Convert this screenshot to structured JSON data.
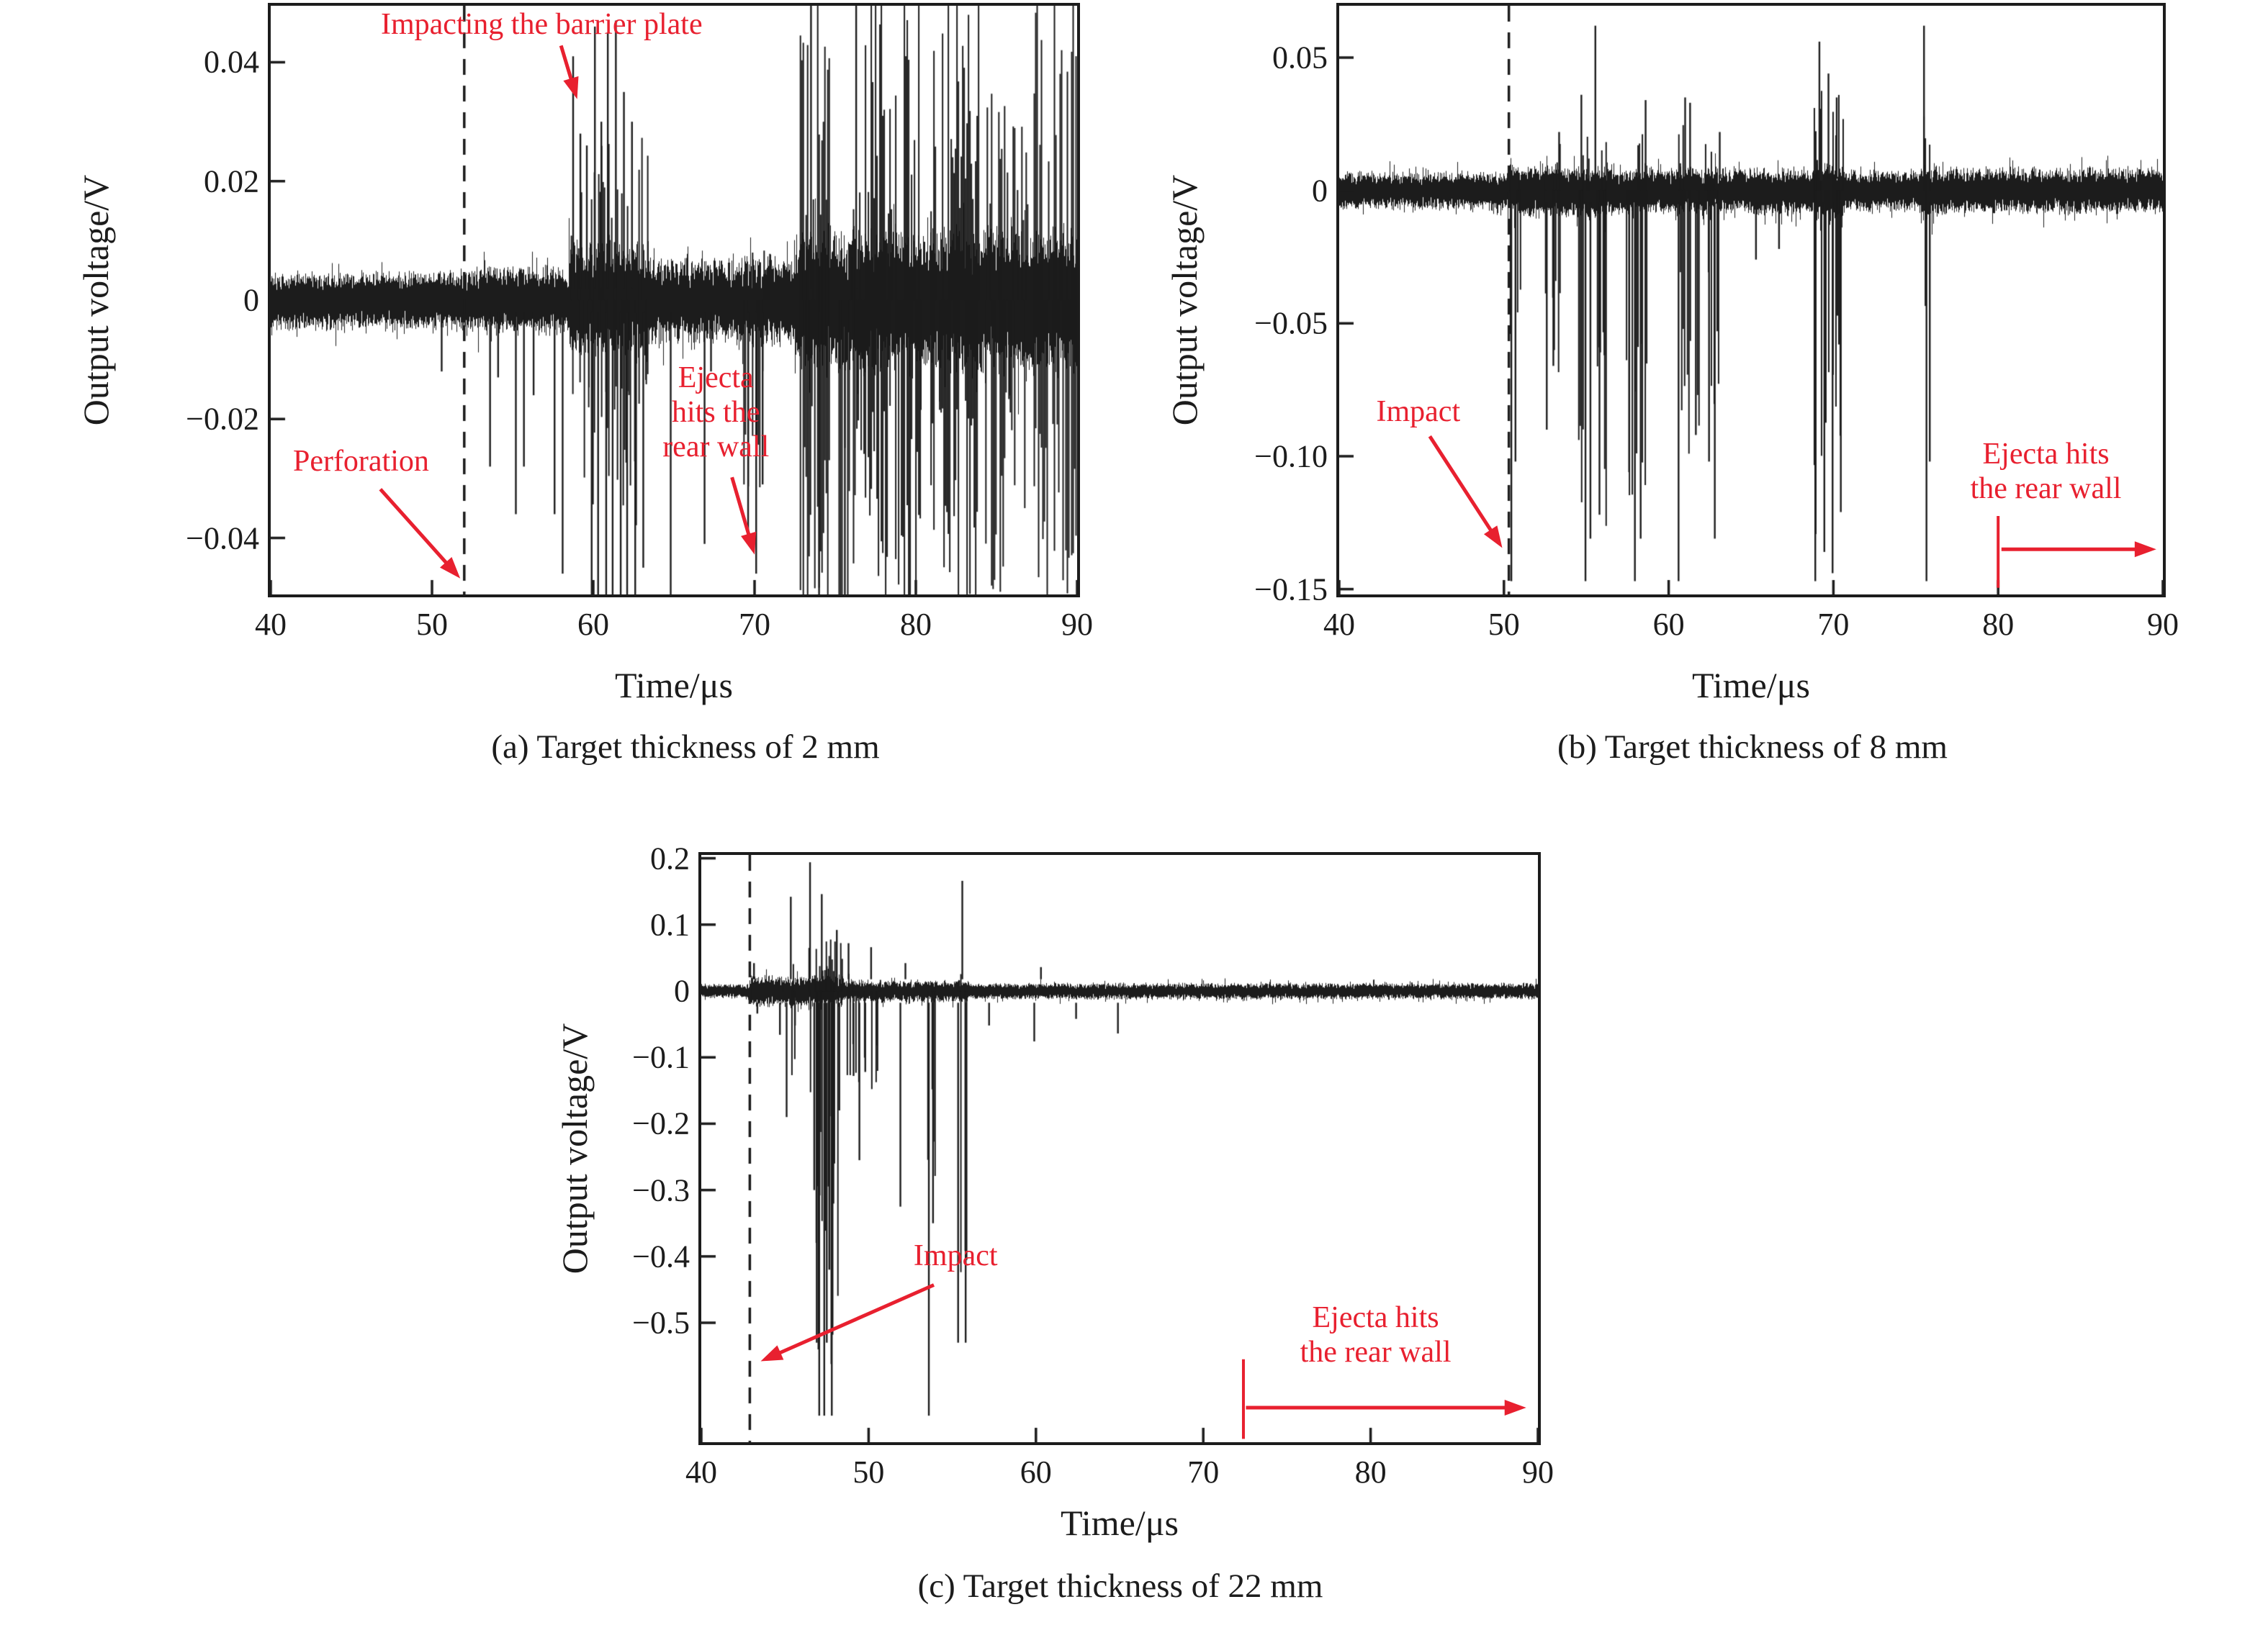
{
  "page_background": "#ffffff",
  "chart_data": [
    {
      "type": "line",
      "panel": "a",
      "caption": "(a) Target thickness of 2 mm",
      "xlabel": "Time/μs",
      "ylabel": "Output voltage/V",
      "xlim": [
        40,
        90
      ],
      "ylim": [
        -0.0495,
        0.0495
      ],
      "xticks": [
        40,
        50,
        60,
        70,
        80,
        90
      ],
      "yticks": [
        [
          0.04,
          "0.04"
        ],
        [
          0.02,
          "0.02"
        ],
        [
          0,
          "0"
        ],
        [
          -0.02,
          "−0.02"
        ],
        [
          -0.04,
          "−0.04"
        ]
      ],
      "dashed_line_x": 52,
      "trace_color": "#1c1c1c",
      "annotation_color": "#e8202f",
      "noise_base": 0.0042,
      "noise_profile": [
        [
          52,
          58,
          0.005
        ],
        [
          58.5,
          63.5,
          0.0085
        ],
        [
          63.5,
          69,
          0.006
        ],
        [
          69,
          72.5,
          0.0065
        ],
        [
          72.5,
          90,
          0.0105
        ]
      ],
      "spikes": [
        [
          50.6,
          -0.012
        ],
        [
          53.6,
          -0.028
        ],
        [
          54.1,
          -0.013
        ],
        [
          55.2,
          -0.036
        ],
        [
          55.7,
          -0.028
        ],
        [
          56.3,
          -0.016
        ],
        [
          57.6,
          -0.036
        ],
        [
          58.1,
          -0.046
        ],
        [
          58.75,
          0.041
        ],
        [
          59.2,
          0.028
        ],
        [
          59.6,
          0.026
        ],
        [
          60.1,
          0.046
        ],
        [
          60.5,
          0.03
        ],
        [
          60.9,
          0.045
        ],
        [
          61.4,
          0.047
        ],
        [
          61.9,
          0.035
        ],
        [
          62.4,
          0.03
        ],
        [
          59.9,
          -0.052
        ],
        [
          60.3,
          -0.052
        ],
        [
          60.8,
          -0.052
        ],
        [
          61.2,
          -0.052
        ],
        [
          61.7,
          -0.052
        ],
        [
          62.1,
          -0.052
        ],
        [
          62.6,
          -0.052
        ],
        [
          63.1,
          -0.045
        ],
        [
          64.8,
          -0.05
        ],
        [
          66.9,
          -0.041
        ],
        [
          67.3,
          -0.012
        ],
        [
          69.6,
          -0.04
        ],
        [
          70.1,
          -0.046
        ],
        [
          70.5,
          -0.031
        ],
        [
          73.5,
          0.052
        ],
        [
          74.0,
          -0.052
        ],
        [
          75.6,
          -0.052
        ],
        [
          76.3,
          0.052
        ]
      ],
      "bursts": [
        [
          58.6,
          63.4,
          0.028,
          -0.04,
          0.5
        ],
        [
          69.3,
          71.0,
          0.012,
          -0.035,
          0.35
        ],
        [
          72.8,
          74.6,
          0.056,
          -0.056,
          0.75
        ],
        [
          75.2,
          76.2,
          0.02,
          -0.055,
          0.5
        ],
        [
          76.3,
          80.4,
          0.056,
          -0.056,
          0.75
        ],
        [
          80.9,
          83.9,
          0.056,
          -0.056,
          0.7
        ],
        [
          84.3,
          86.9,
          0.038,
          -0.05,
          0.55
        ],
        [
          87.3,
          90,
          0.056,
          -0.056,
          0.7
        ]
      ],
      "annotations": [
        {
          "name": "impacting-barrier-plate-label",
          "lines": [
            "Impacting the barrier plate"
          ],
          "x": 56.8,
          "y": 0.0462,
          "arrow": [
            58.0,
            0.0428,
            59.0,
            0.0338
          ]
        },
        {
          "name": "perforation-label",
          "lines": [
            "Perforation"
          ],
          "x": 45.6,
          "y": -0.0272,
          "arrow": [
            46.8,
            -0.0318,
            51.75,
            -0.0468
          ]
        },
        {
          "name": "ejecta-hits-rear-wall-label",
          "lines": [
            "Ejecta",
            "hits the",
            "rear wall"
          ],
          "x": 67.6,
          "y": -0.019,
          "arrow": [
            68.6,
            -0.0298,
            70.0,
            -0.0428
          ]
        }
      ]
    },
    {
      "type": "line",
      "panel": "b",
      "caption": "(b) Target thickness of 8 mm",
      "xlabel": "Time/μs",
      "ylabel": "Output voltage/V",
      "xlim": [
        40,
        90
      ],
      "ylim": [
        -0.152,
        0.0695
      ],
      "xticks": [
        40,
        50,
        60,
        70,
        80,
        90
      ],
      "yticks": [
        [
          0.05,
          "0.05"
        ],
        [
          0,
          "0"
        ],
        [
          -0.05,
          "−0.05"
        ],
        [
          -0.1,
          "−0.10"
        ],
        [
          -0.15,
          "−0.15"
        ]
      ],
      "dashed_line_x": 50.3,
      "trace_color": "#1c1c1c",
      "annotation_color": "#e8202f",
      "noise_base": 0.006,
      "noise_profile": [
        [
          50.3,
          56.5,
          0.0085
        ],
        [
          56.5,
          68.8,
          0.0075
        ],
        [
          68.8,
          70.6,
          0.0095
        ],
        [
          70.6,
          75.3,
          0.0065
        ],
        [
          75.3,
          76.3,
          0.009
        ],
        [
          76.3,
          90,
          0.0075
        ]
      ],
      "spikes": [
        [
          50.45,
          -0.147
        ],
        [
          50.7,
          -0.102
        ],
        [
          52.6,
          -0.09
        ],
        [
          53.0,
          -0.066
        ],
        [
          53.35,
          0.022
        ],
        [
          54.7,
          0.036
        ],
        [
          54.95,
          -0.147
        ],
        [
          55.25,
          -0.131
        ],
        [
          55.55,
          0.062
        ],
        [
          55.8,
          -0.122
        ],
        [
          56.1,
          -0.062
        ],
        [
          57.6,
          -0.106
        ],
        [
          57.95,
          -0.147
        ],
        [
          58.3,
          -0.131
        ],
        [
          58.6,
          0.034
        ],
        [
          60.6,
          -0.147
        ],
        [
          61.0,
          0.035
        ],
        [
          61.3,
          0.033
        ],
        [
          61.65,
          -0.092
        ],
        [
          62.45,
          -0.102
        ],
        [
          62.8,
          -0.131
        ],
        [
          63.1,
          0.022
        ],
        [
          65.3,
          -0.026
        ],
        [
          66.7,
          -0.022
        ],
        [
          68.9,
          -0.147
        ],
        [
          69.15,
          0.056
        ],
        [
          69.45,
          -0.136
        ],
        [
          69.7,
          0.044
        ],
        [
          69.95,
          -0.144
        ],
        [
          70.2,
          0.035
        ],
        [
          70.45,
          -0.121
        ],
        [
          75.5,
          0.062
        ],
        [
          75.65,
          -0.147
        ],
        [
          75.85,
          -0.102
        ]
      ],
      "bursts": [
        [
          50.35,
          51.0,
          0.012,
          -0.118,
          0.45
        ],
        [
          52.4,
          53.4,
          0.018,
          -0.082,
          0.4
        ],
        [
          54.5,
          56.2,
          0.028,
          -0.128,
          0.5
        ],
        [
          57.4,
          58.7,
          0.024,
          -0.118,
          0.45
        ],
        [
          60.4,
          61.8,
          0.03,
          -0.1,
          0.4
        ],
        [
          62.2,
          63.3,
          0.02,
          -0.1,
          0.4
        ],
        [
          68.8,
          70.6,
          0.04,
          -0.132,
          0.5
        ],
        [
          75.45,
          75.95,
          0.05,
          -0.138,
          0.55
        ]
      ],
      "annotations": [
        {
          "name": "impact-label",
          "lines": [
            "Impact"
          ],
          "x": 44.8,
          "y": -0.0835,
          "arrow": [
            45.5,
            -0.0925,
            49.9,
            -0.1345
          ]
        },
        {
          "name": "ejecta-hits-rear-wall-label",
          "lines": [
            "Ejecta hits",
            "the rear wall"
          ],
          "x": 82.9,
          "y": -0.106,
          "vline": [
            80,
            -0.1225,
            -0.1495
          ],
          "harrow": [
            -0.135,
            80.2,
            89.6
          ]
        }
      ]
    },
    {
      "type": "line",
      "panel": "c",
      "caption": "(c) Target thickness of 22 mm",
      "xlabel": "Time/μs",
      "ylabel": "Output voltage/V",
      "xlim": [
        40,
        90
      ],
      "ylim": [
        -0.68,
        0.205
      ],
      "xticks": [
        40,
        50,
        60,
        70,
        80,
        90
      ],
      "yticks": [
        [
          0.2,
          "0.2"
        ],
        [
          0.1,
          "0.1"
        ],
        [
          0,
          "0"
        ],
        [
          -0.1,
          "−0.1"
        ],
        [
          -0.2,
          "−0.2"
        ],
        [
          -0.3,
          "−0.3"
        ],
        [
          -0.4,
          "−0.4"
        ],
        [
          -0.5,
          "−0.5"
        ]
      ],
      "dashed_line_x": 42.9,
      "trace_color": "#1c1c1c",
      "annotation_color": "#e8202f",
      "noise_base": 0.009,
      "noise_profile": [
        [
          42.9,
          48.5,
          0.02
        ],
        [
          48.5,
          56,
          0.014
        ],
        [
          56,
          90,
          0.0105
        ]
      ],
      "spikes": [
        [
          43.15,
          0.042
        ],
        [
          43.35,
          -0.034
        ],
        [
          44.7,
          -0.066
        ],
        [
          45.1,
          -0.19
        ],
        [
          45.35,
          0.142
        ],
        [
          45.6,
          -0.052
        ],
        [
          46.5,
          0.194
        ],
        [
          46.75,
          -0.3
        ],
        [
          46.9,
          -0.53
        ],
        [
          47.05,
          -0.64
        ],
        [
          47.2,
          0.146
        ],
        [
          47.35,
          -0.64
        ],
        [
          47.5,
          -0.53
        ],
        [
          47.65,
          -0.42
        ],
        [
          47.8,
          -0.64
        ],
        [
          47.95,
          -0.26
        ],
        [
          48.1,
          0.092
        ],
        [
          48.25,
          -0.18
        ],
        [
          48.8,
          0.072
        ],
        [
          49.1,
          -0.128
        ],
        [
          49.45,
          -0.255
        ],
        [
          49.8,
          -0.122
        ],
        [
          50.15,
          0.066
        ],
        [
          50.5,
          -0.082
        ],
        [
          51.9,
          -0.325
        ],
        [
          52.2,
          0.042
        ],
        [
          53.6,
          -0.64
        ],
        [
          53.85,
          -0.35
        ],
        [
          55.35,
          -0.53
        ],
        [
          55.6,
          0.166
        ],
        [
          55.8,
          -0.53
        ],
        [
          57.2,
          -0.052
        ],
        [
          59.9,
          -0.076
        ],
        [
          60.3,
          0.036
        ],
        [
          62.4,
          -0.042
        ],
        [
          64.9,
          -0.064
        ]
      ],
      "bursts": [
        [
          44.6,
          45.7,
          0.05,
          -0.15,
          0.35
        ],
        [
          46.4,
          48.4,
          0.09,
          -0.48,
          0.55
        ],
        [
          46.95,
          47.85,
          0.04,
          -0.62,
          0.65
        ],
        [
          48.6,
          50.7,
          0.05,
          -0.16,
          0.4
        ],
        [
          53.5,
          54.0,
          0.02,
          -0.34,
          0.45
        ],
        [
          55.3,
          55.9,
          0.03,
          -0.5,
          0.45
        ]
      ],
      "annotations": [
        {
          "name": "impact-label",
          "lines": [
            "Impact"
          ],
          "x": 55.2,
          "y": -0.4,
          "arrow": [
            53.9,
            -0.443,
            43.55,
            -0.558
          ]
        },
        {
          "name": "ejecta-hits-rear-wall-label",
          "lines": [
            "Ejecta hits",
            "the rear wall"
          ],
          "x": 80.3,
          "y": -0.52,
          "vline": [
            72.4,
            -0.555,
            -0.675
          ],
          "harrow": [
            -0.628,
            72.55,
            89.3
          ]
        }
      ]
    }
  ]
}
